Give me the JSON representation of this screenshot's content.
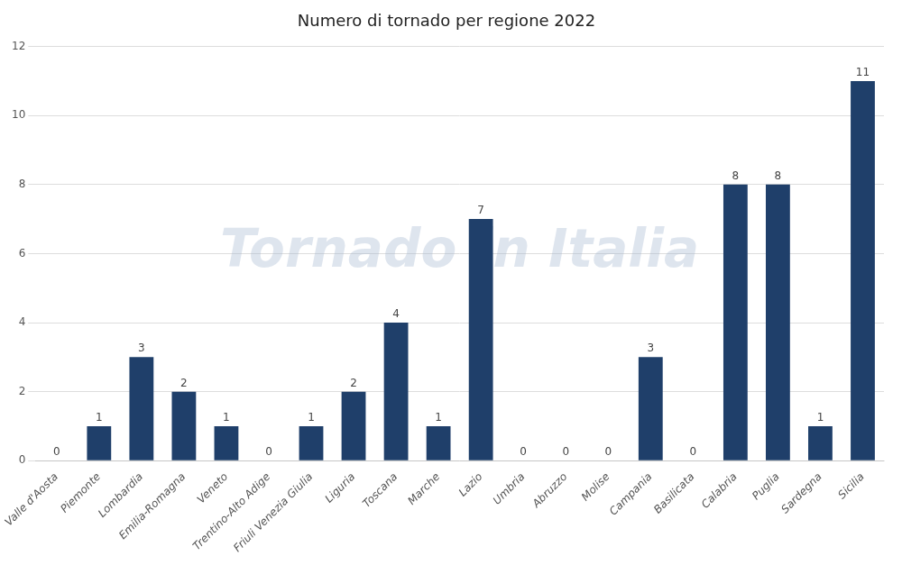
{
  "chart_data": {
    "type": "bar",
    "title": "Numero di tornado per regione 2022",
    "categories": [
      "Valle d'Aosta",
      "Piemonte",
      "Lombardia",
      "Emilia-Romagna",
      "Veneto",
      "Trentino-Alto Adige",
      "Friuli Venezia Giulia",
      "Liguria",
      "Toscana",
      "Marche",
      "Lazio",
      "Umbria",
      "Abruzzo",
      "Molise",
      "Campania",
      "Basilicata",
      "Calabria",
      "Puglia",
      "Sardegna",
      "Sicilia"
    ],
    "values": [
      0,
      1,
      3,
      2,
      1,
      0,
      1,
      2,
      4,
      1,
      7,
      0,
      0,
      0,
      3,
      0,
      8,
      8,
      1,
      11
    ],
    "color": "#1F3F6A",
    "ylim": [
      0,
      12
    ],
    "yticks": [
      0,
      2,
      4,
      6,
      8,
      10,
      12
    ],
    "grid": true,
    "data_labels": true,
    "annotations": [
      "Tornado in Italia"
    ]
  }
}
